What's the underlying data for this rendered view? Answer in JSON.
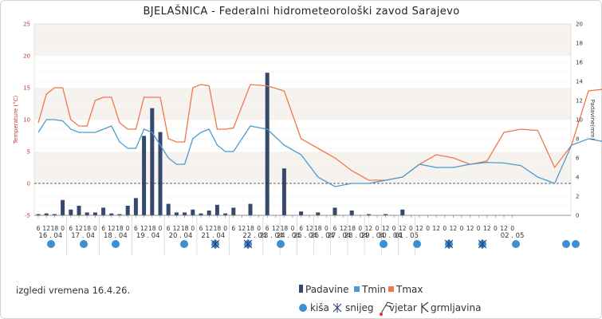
{
  "colors": {
    "tmax": "#f0774c",
    "tmin": "#4a9bd0",
    "padavine": "#34496b",
    "kisa": "#3a8fd6",
    "snijeg": "#2d3e7c",
    "zero_line": "#2a2a2a"
  },
  "chart_data": {
    "type": "line",
    "title": "BJELAŠNICA - Federalni hidrometeorološki zavod Sarajevo",
    "left_axis": {
      "label": "Temperature (°C)",
      "range": [
        -5,
        25
      ],
      "ticks": [
        "-5",
        "0",
        "5",
        "10",
        "15",
        "20",
        "25"
      ]
    },
    "right_axis": {
      "label": "Padavine(mm)",
      "range": [
        0,
        20
      ],
      "ticks": [
        "0",
        "2",
        "4",
        "6",
        "8",
        "10",
        "12",
        "14",
        "16",
        "18",
        "20"
      ]
    },
    "date_labels": [
      "16 . 04",
      "17 . 04",
      "18 . 04",
      "19 . 04",
      "20 . 04",
      "21 . 04",
      "22 . 04",
      "23 . 04",
      "24 . 04",
      "25 . 04",
      "26 . 04",
      "27 . 04",
      "28 . 04",
      "29 . 04",
      "30 . 04",
      "01 . 05",
      "02 . 05"
    ],
    "hour_labels": [
      "6",
      "12",
      "18",
      "0",
      "6",
      "12",
      "18",
      "0",
      "6",
      "12",
      "18",
      "0",
      "6",
      "12",
      "18",
      "0",
      "6",
      "12",
      "18",
      "0",
      "6",
      "12",
      "18",
      "0",
      "6",
      "12",
      "18",
      "0",
      "6",
      "12",
      "18",
      "0",
      "6",
      "12",
      "18",
      "0",
      "6",
      "12",
      "18",
      "0",
      "12",
      "0",
      "12",
      "0",
      "12",
      "0",
      "12",
      "0",
      "12",
      "0",
      "12",
      "0",
      "12",
      "0",
      "12",
      "0",
      "12",
      "0"
    ],
    "series": [
      {
        "name": "Tmax",
        "values": [
          9.5,
          14,
          15,
          15,
          10,
          9,
          9,
          13,
          13.5,
          13.5,
          9.5,
          8.5,
          8.5,
          13.5,
          13.5,
          13.5,
          7,
          6.5,
          6.5,
          15,
          15.5,
          15.3,
          8.5,
          8.5,
          8.7,
          15.5,
          15.3,
          14.5,
          7,
          5.5,
          4,
          2,
          0.5,
          0.5,
          1,
          3,
          4.5,
          4,
          3,
          3.5,
          8,
          8.5,
          8.3,
          2.5,
          6,
          14.5,
          14.8,
          14.5,
          7,
          8.5,
          15.5,
          16,
          15.5,
          10,
          17.5,
          10.5,
          12.5,
          3.5,
          0,
          3,
          -0.5,
          10.5,
          4,
          11.5,
          5.5
        ]
      },
      {
        "name": "Tmin",
        "values": [
          8,
          10,
          10,
          9.8,
          8.5,
          8,
          8,
          8,
          8.5,
          9,
          6.5,
          5.5,
          5.5,
          8.5,
          8,
          6,
          4,
          3,
          3,
          7,
          8,
          8.5,
          6,
          5,
          5,
          9,
          8.5,
          6,
          4.5,
          1,
          -0.5,
          0,
          0,
          0.5,
          1,
          3,
          2.5,
          2.5,
          3,
          3.3,
          3.2,
          2.8,
          1,
          0,
          6,
          7,
          6.5,
          5,
          4.5,
          9,
          10,
          10,
          9,
          12,
          9,
          7,
          2.5,
          0,
          -1,
          0,
          -3.2,
          2.2,
          1.8,
          6,
          4
        ]
      },
      {
        "name": "Padavine",
        "values": [
          0.1,
          0.2,
          0.1,
          1.6,
          0.6,
          1,
          0.3,
          0.3,
          0.8,
          0.2,
          0.1,
          1,
          1.8,
          8.3,
          11.2,
          8.7,
          1.2,
          0.3,
          0.3,
          0.6,
          0.2,
          0.5,
          1.1,
          0.2,
          0.8,
          1.2,
          14.9,
          4.9,
          0.4,
          0.3,
          0.8,
          0.5,
          0.1,
          0.1,
          0.6
        ]
      }
    ],
    "legend": [
      "Padavine",
      "Tmin",
      "Tmax"
    ],
    "legend_position": "bottom-center",
    "grid": true
  },
  "weather_legend": {
    "kisa": "kiša",
    "snijeg": "snijeg",
    "vjetar": "vjetar",
    "grmljavina": "grmljavina"
  },
  "footer_note": "izgledi vremena 16.4.26."
}
